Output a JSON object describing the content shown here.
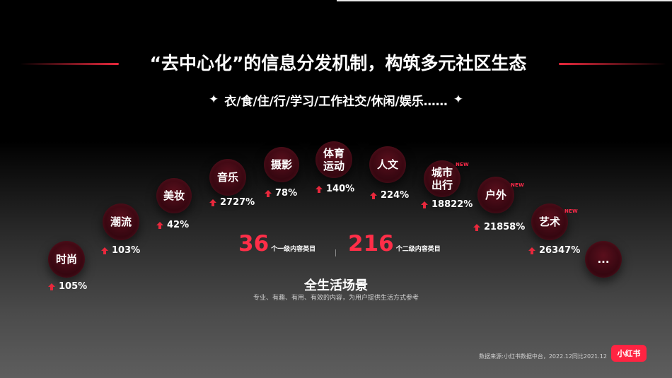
{
  "title": "“去中心化”的信息分发机制，构筑多元社区生态",
  "subtitle": "衣/食/住/行/学习/工作社交/休闲/娱乐……",
  "categories": [
    {
      "label": "时尚",
      "growth": "105%"
    },
    {
      "label": "潮流",
      "growth": "103%"
    },
    {
      "label": "美妆",
      "growth": "42%"
    },
    {
      "label": "音乐",
      "growth": "2727%"
    },
    {
      "label": "摄影",
      "growth": "78%"
    },
    {
      "label": "体育\n运动",
      "growth": "140%"
    },
    {
      "label": "人文",
      "growth": "224%"
    },
    {
      "label": "城市\n出行",
      "growth": "18822%",
      "badge": "NEW"
    },
    {
      "label": "户外",
      "growth": "21858%",
      "badge": "NEW"
    },
    {
      "label": "艺术",
      "growth": "26347%",
      "badge": "NEW"
    },
    {
      "label": "..."
    }
  ],
  "level1": {
    "count": "36",
    "label": "个一级内容类目"
  },
  "level2": {
    "count": "216",
    "label": "个二级内容类目"
  },
  "center_title": "全生活场景",
  "center_subtitle": "专业、有趣、有用、有效的内容，为用户提供生活方式参考",
  "source": "数据来源:小红书数据中台，2022.12同比2021.12",
  "logo_text": "小红书",
  "colors": {
    "accent": "#ff2e48",
    "bubble": "#3a0812"
  }
}
